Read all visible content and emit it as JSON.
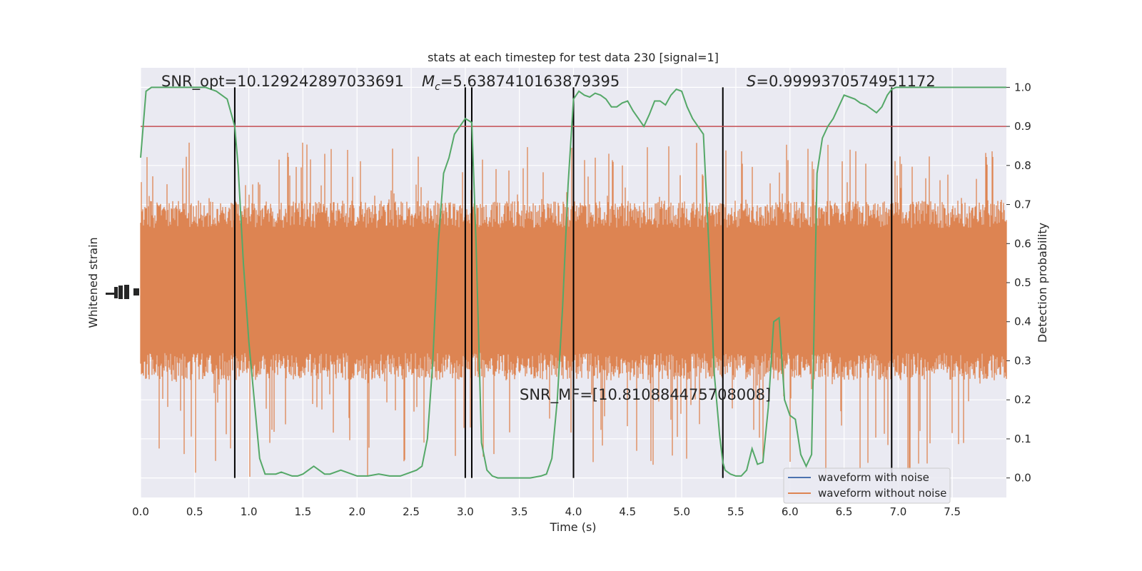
{
  "chart_data": {
    "type": "line",
    "title": "stats at each timestep for test data 230 [signal=1]",
    "xlabel": "Time (s)",
    "ylabel_left": "Whitened strain",
    "ylabel_right": "Detection probability",
    "xlim": [
      0,
      8
    ],
    "ylim_right": [
      -0.05,
      1.05
    ],
    "x_ticks": [
      0.0,
      0.5,
      1.0,
      1.5,
      2.0,
      2.5,
      3.0,
      3.5,
      4.0,
      4.5,
      5.0,
      5.5,
      6.0,
      6.5,
      7.0,
      7.5
    ],
    "x_tick_labels": [
      "0.0",
      "0.5",
      "1.0",
      "1.5",
      "2.0",
      "2.5",
      "3.0",
      "3.5",
      "4.0",
      "4.5",
      "5.0",
      "5.5",
      "6.0",
      "6.5",
      "7.0",
      "7.5"
    ],
    "y_ticks_right": [
      0.0,
      0.1,
      0.2,
      0.3,
      0.4,
      0.5,
      0.6,
      0.7,
      0.8,
      0.9,
      1.0
    ],
    "y_tick_labels_right": [
      "0.0",
      "0.1",
      "0.2",
      "0.3",
      "0.4",
      "0.5",
      "0.6",
      "0.7",
      "0.8",
      "0.9",
      "1.0"
    ],
    "grid": true,
    "legend_placement": "lower-right",
    "threshold": {
      "value": 0.9,
      "color": "#c44e52"
    },
    "vertical_markers": [
      0.87,
      3.0,
      3.06,
      4.0,
      5.38,
      6.94
    ],
    "annotations": {
      "snr_opt": "SNR_opt=10.129242897033691",
      "mc_symbol": "M",
      "mc_sub": "c",
      "mc_value": "=5.6387410163879395",
      "s_symbol": "S",
      "s_value": "=0.9999370574951172",
      "snr_mf": "SNR_MF=[10.810884475708008]"
    },
    "series": [
      {
        "name": "waveform with noise",
        "color": "#4c72b0",
        "note_shown": "legend only; hidden beneath orange trace"
      },
      {
        "name": "waveform without noise",
        "color": "#dd8452",
        "band_center": 0.48,
        "band_halfwidth": 0.16,
        "spike_max": 0.86,
        "spike_min": 0.0
      },
      {
        "name": "",
        "color": "#55a868",
        "x": [
          0.0,
          0.05,
          0.1,
          0.15,
          0.2,
          0.3,
          0.4,
          0.5,
          0.55,
          0.6,
          0.65,
          0.7,
          0.75,
          0.8,
          0.85,
          0.87,
          0.9,
          0.95,
          1.0,
          1.05,
          1.1,
          1.15,
          1.2,
          1.25,
          1.3,
          1.35,
          1.4,
          1.45,
          1.5,
          1.55,
          1.6,
          1.65,
          1.7,
          1.75,
          1.8,
          1.85,
          1.9,
          1.95,
          2.0,
          2.1,
          2.2,
          2.3,
          2.35,
          2.4,
          2.45,
          2.5,
          2.55,
          2.6,
          2.65,
          2.7,
          2.75,
          2.8,
          2.85,
          2.9,
          2.95,
          3.0,
          3.06,
          3.1,
          3.15,
          3.2,
          3.25,
          3.3,
          3.35,
          3.4,
          3.5,
          3.6,
          3.7,
          3.75,
          3.8,
          3.85,
          3.9,
          3.95,
          4.0,
          4.05,
          4.1,
          4.15,
          4.2,
          4.25,
          4.3,
          4.35,
          4.4,
          4.45,
          4.5,
          4.55,
          4.6,
          4.65,
          4.7,
          4.75,
          4.8,
          4.85,
          4.9,
          4.95,
          5.0,
          5.05,
          5.1,
          5.15,
          5.2,
          5.25,
          5.3,
          5.35,
          5.38,
          5.4,
          5.45,
          5.5,
          5.55,
          5.6,
          5.65,
          5.7,
          5.75,
          5.8,
          5.85,
          5.9,
          5.95,
          6.0,
          6.05,
          6.1,
          6.15,
          6.2,
          6.25,
          6.3,
          6.35,
          6.4,
          6.45,
          6.5,
          6.55,
          6.6,
          6.65,
          6.7,
          6.75,
          6.8,
          6.85,
          6.9,
          6.94,
          6.98,
          7.05,
          7.1,
          7.15,
          7.2,
          7.25,
          7.3,
          7.35,
          7.4,
          7.45,
          7.5,
          7.55,
          7.6,
          7.65,
          7.7,
          7.75,
          7.8,
          7.85,
          7.9,
          7.95,
          8.0
        ],
        "y": [
          0.82,
          0.99,
          1.0,
          1.0,
          1.0,
          1.0,
          1.0,
          1.0,
          1.0,
          1.0,
          0.995,
          0.99,
          0.98,
          0.97,
          0.92,
          0.9,
          0.8,
          0.55,
          0.35,
          0.2,
          0.05,
          0.01,
          0.01,
          0.01,
          0.015,
          0.01,
          0.005,
          0.005,
          0.01,
          0.02,
          0.03,
          0.02,
          0.01,
          0.01,
          0.015,
          0.02,
          0.015,
          0.01,
          0.005,
          0.005,
          0.01,
          0.005,
          0.005,
          0.005,
          0.01,
          0.015,
          0.02,
          0.03,
          0.1,
          0.3,
          0.6,
          0.78,
          0.82,
          0.88,
          0.9,
          0.92,
          0.91,
          0.6,
          0.09,
          0.02,
          0.005,
          0.0,
          0.0,
          0.0,
          0.0,
          0.0,
          0.005,
          0.01,
          0.05,
          0.2,
          0.44,
          0.75,
          0.97,
          0.99,
          0.98,
          0.975,
          0.985,
          0.98,
          0.97,
          0.95,
          0.95,
          0.96,
          0.965,
          0.94,
          0.92,
          0.9,
          0.93,
          0.965,
          0.965,
          0.955,
          0.98,
          0.995,
          0.99,
          0.95,
          0.92,
          0.9,
          0.88,
          0.6,
          0.27,
          0.11,
          0.04,
          0.02,
          0.01,
          0.005,
          0.005,
          0.02,
          0.075,
          0.035,
          0.04,
          0.18,
          0.4,
          0.41,
          0.2,
          0.16,
          0.15,
          0.06,
          0.03,
          0.06,
          0.78,
          0.87,
          0.9,
          0.92,
          0.95,
          0.98,
          0.975,
          0.97,
          0.96,
          0.955,
          0.945,
          0.935,
          0.95,
          0.98,
          0.995,
          1.0,
          1.0,
          1.0,
          1.0,
          1.0,
          1.0,
          1.0,
          1.0,
          1.0,
          1.0,
          1.0,
          1.0,
          1.0,
          1.0,
          1.0,
          1.0,
          1.0,
          1.0,
          1.0,
          1.0,
          1.0
        ]
      }
    ]
  },
  "colors": {
    "plot_background": "#eaeaf2",
    "grid": "#ffffff",
    "marker_line": "#000000"
  }
}
